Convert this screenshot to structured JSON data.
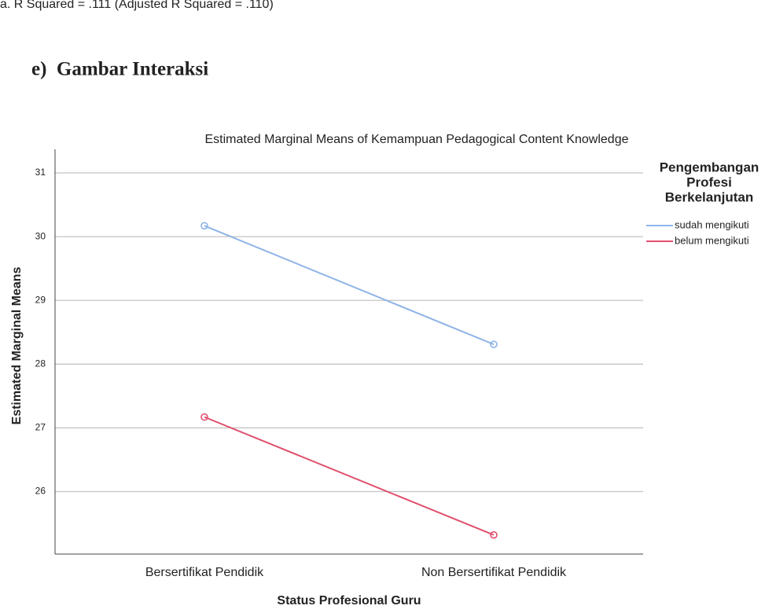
{
  "note": "a. R Squared = .111 (Adjusted R Squared = .110)",
  "heading": "e)  Gambar Interaksi",
  "chart_data": {
    "type": "line",
    "title": "Estimated Marginal Means of Kemampuan Pedagogical Content Knowledge",
    "x_label": "Status Profesional Guru",
    "y_label": "Estimated Marginal Means",
    "categories": [
      "Bersertifikat Pendidik",
      "Non Bersertifikat Pendidik"
    ],
    "series": [
      {
        "name": "sudah mengikuti",
        "color": "#8fb4e8",
        "values": [
          30.17,
          28.31
        ]
      },
      {
        "name": "belum mengikuti",
        "color": "#e0506e",
        "values": [
          27.17,
          25.32
        ]
      }
    ],
    "ylim": [
      25.02,
      31.37
    ],
    "yticks": [
      26,
      27,
      28,
      29,
      30,
      31
    ],
    "grid": true,
    "legend_title": [
      "Pengembangan",
      "Profesi",
      "Berkelanjutan"
    ],
    "legend_position": "right"
  }
}
